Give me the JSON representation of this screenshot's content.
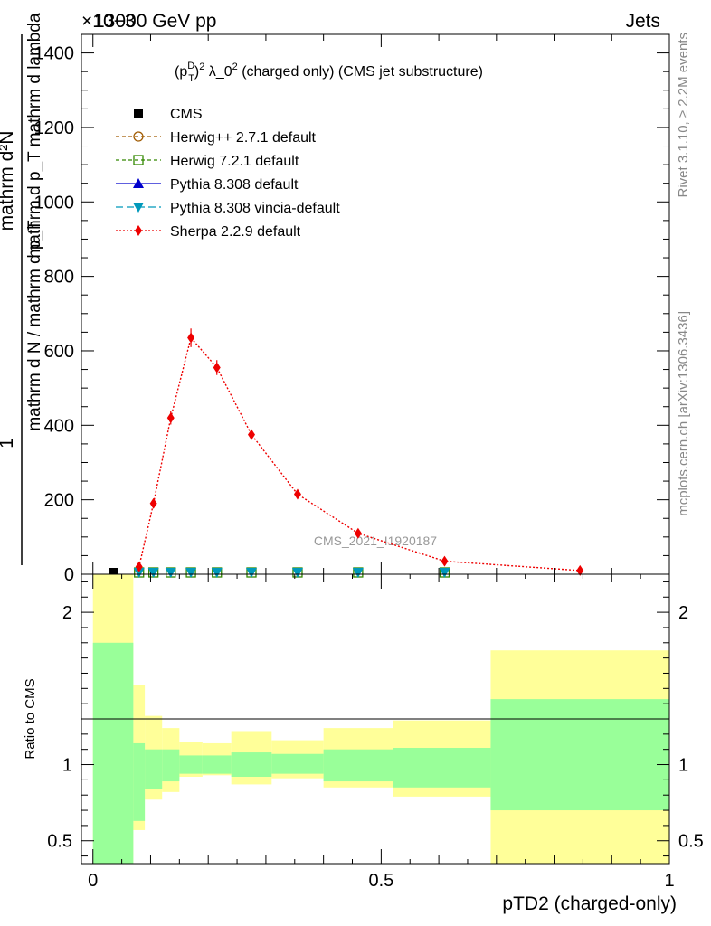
{
  "header": {
    "left": "13000 GeV pp",
    "right": "Jets",
    "exponent": "×10−3"
  },
  "side_labels": {
    "rivet": "Rivet 3.1.10, ≥ 2.2M events",
    "mcplots": "mcplots.cern.ch [arXiv:1306.3436]"
  },
  "chart_data": [
    {
      "type": "line",
      "title_parts": {
        "a": "(p",
        "sup1": "D",
        "sub1": "T",
        "b": ")",
        "sup2": "2",
        "c": " λ_0",
        "sup3": "2",
        "d": " (charged only) (CMS jet substructure)"
      },
      "ylabel": {
        "numerator": "mathrm d²N",
        "numerator_sub": "mathrm d p_T mathrm d lambda",
        "denominator_one": "1",
        "denominator": "mathrm d N / mathrm d p_T"
      },
      "xlim": [
        -0.02,
        1.0
      ],
      "ylim": [
        0,
        1450
      ],
      "yticks": [
        0,
        200,
        400,
        600,
        800,
        1000,
        1200,
        1400
      ],
      "watermark": "CMS_2021_I1920187",
      "legend": [
        {
          "label": "CMS",
          "color": "#000000",
          "marker": "square"
        },
        {
          "label": "Herwig++ 2.7.1 default",
          "color": "#a05a00",
          "marker": "circle-open",
          "dash": "4,3"
        },
        {
          "label": "Herwig 7.2.1 default",
          "color": "#338800",
          "marker": "square-open",
          "dash": "4,3"
        },
        {
          "label": "Pythia 8.308 default",
          "color": "#0000cc",
          "marker": "triangle",
          "dash": ""
        },
        {
          "label": "Pythia 8.308 vincia-default",
          "color": "#0099bb",
          "marker": "triangle-down",
          "dash": "8,4"
        },
        {
          "label": "Sherpa 2.2.9 default",
          "color": "#ee0000",
          "marker": "diamond",
          "dash": "2,2"
        }
      ],
      "sherpa": {
        "name": "Sherpa 2.2.9 default",
        "x": [
          0.08,
          0.105,
          0.135,
          0.17,
          0.215,
          0.275,
          0.355,
          0.46,
          0.61,
          0.845
        ],
        "y": [
          20,
          190,
          420,
          635,
          555,
          375,
          215,
          110,
          35,
          10
        ],
        "err": [
          4,
          12,
          18,
          25,
          20,
          14,
          10,
          6,
          4,
          2
        ]
      },
      "near_zero_x": [
        0.035,
        0.08,
        0.105,
        0.135,
        0.17,
        0.215,
        0.275,
        0.355,
        0.46,
        0.61
      ]
    },
    {
      "type": "area",
      "ylabel": "Ratio to CMS",
      "xlabel": "pTD2 (charged-only)",
      "xlim": [
        -0.02,
        1.0
      ],
      "ylim": [
        0.35,
        2.25
      ],
      "yticks": [
        0.5,
        1,
        2
      ],
      "xticks": [
        0,
        0.5,
        1
      ],
      "edges": [
        0,
        0.07,
        0.09,
        0.12,
        0.15,
        0.19,
        0.24,
        0.31,
        0.4,
        0.52,
        0.69,
        1.0
      ],
      "green_lo": [
        0.35,
        0.63,
        0.84,
        0.89,
        0.94,
        0.94,
        0.92,
        0.94,
        0.89,
        0.85,
        0.7
      ],
      "green_hi": [
        1.8,
        1.14,
        1.1,
        1.1,
        1.06,
        1.06,
        1.08,
        1.07,
        1.1,
        1.11,
        1.43
      ],
      "yellow_lo": [
        0.35,
        0.57,
        0.77,
        0.82,
        0.92,
        0.93,
        0.87,
        0.91,
        0.85,
        0.79,
        0.35
      ],
      "yellow_hi": [
        2.25,
        1.52,
        1.32,
        1.24,
        1.15,
        1.14,
        1.22,
        1.16,
        1.24,
        1.29,
        1.75
      ],
      "green_color": "#99ff99",
      "yellow_color": "#ffff99"
    }
  ]
}
